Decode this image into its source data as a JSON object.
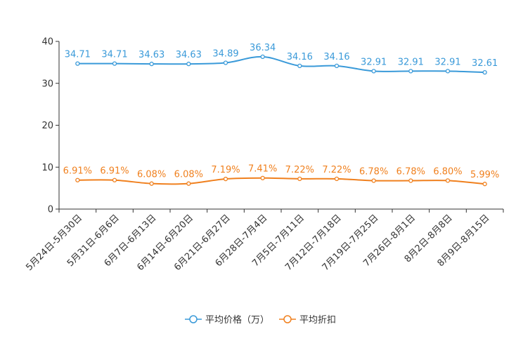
{
  "chart_data": {
    "type": "line",
    "categories": [
      "5月24日-5月30日",
      "5月31日-6月6日",
      "6月7日-6月13日",
      "6月14日-6月20日",
      "6月21日-6月27日",
      "6月28日-7月4日",
      "7月5日-7月11日",
      "7月12日-7月18日",
      "7月19日-7月25日",
      "7月26日-8月1日",
      "8月2日-8月8日",
      "8月9日-8月15日"
    ],
    "ylim": [
      0,
      40
    ],
    "yticks": [
      0,
      10,
      20,
      30,
      40
    ],
    "series": [
      {
        "name": "平均价格（万）",
        "color": "#3a9ad9",
        "values": [
          34.71,
          34.71,
          34.63,
          34.63,
          34.89,
          36.34,
          34.16,
          34.16,
          32.91,
          32.91,
          32.91,
          32.61
        ],
        "labels": [
          "34.71",
          "34.71",
          "34.63",
          "34.63",
          "34.89",
          "36.34",
          "34.16",
          "34.16",
          "32.91",
          "32.91",
          "32.91",
          "32.61"
        ]
      },
      {
        "name": "平均折扣",
        "color": "#f0801e",
        "values": [
          6.91,
          6.91,
          6.08,
          6.08,
          7.19,
          7.41,
          7.22,
          7.22,
          6.78,
          6.78,
          6.8,
          5.99
        ],
        "labels": [
          "6.91%",
          "6.91%",
          "6.08%",
          "6.08%",
          "7.19%",
          "7.41%",
          "7.22%",
          "7.22%",
          "6.78%",
          "6.78%",
          "6.80%",
          "5.99%"
        ]
      }
    ],
    "legend_position": "bottom-center",
    "grid": false
  }
}
